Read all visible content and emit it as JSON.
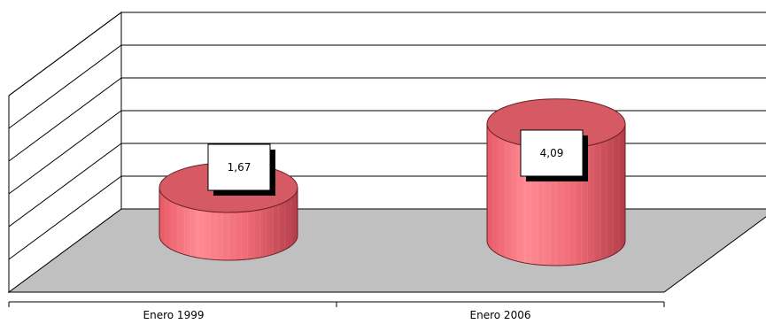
{
  "chart_data": {
    "type": "bar",
    "style": "3d-cylinder",
    "categories": [
      "Enero 1999",
      "Enero 2006"
    ],
    "series": [
      {
        "values": [
          1.67,
          4.09
        ]
      }
    ],
    "data_labels": [
      "1,67",
      "4,09"
    ],
    "title": "",
    "xlabel": "",
    "ylabel": "",
    "ylim": [
      0,
      7
    ],
    "grid": true,
    "legend": "none",
    "colors": {
      "bar": "#f06c76",
      "bar_dark": "#b83a45",
      "bar_top": "#d65a64",
      "floor": "#c0c0c0",
      "wall": "#ffffff",
      "axis": "#000000"
    }
  }
}
